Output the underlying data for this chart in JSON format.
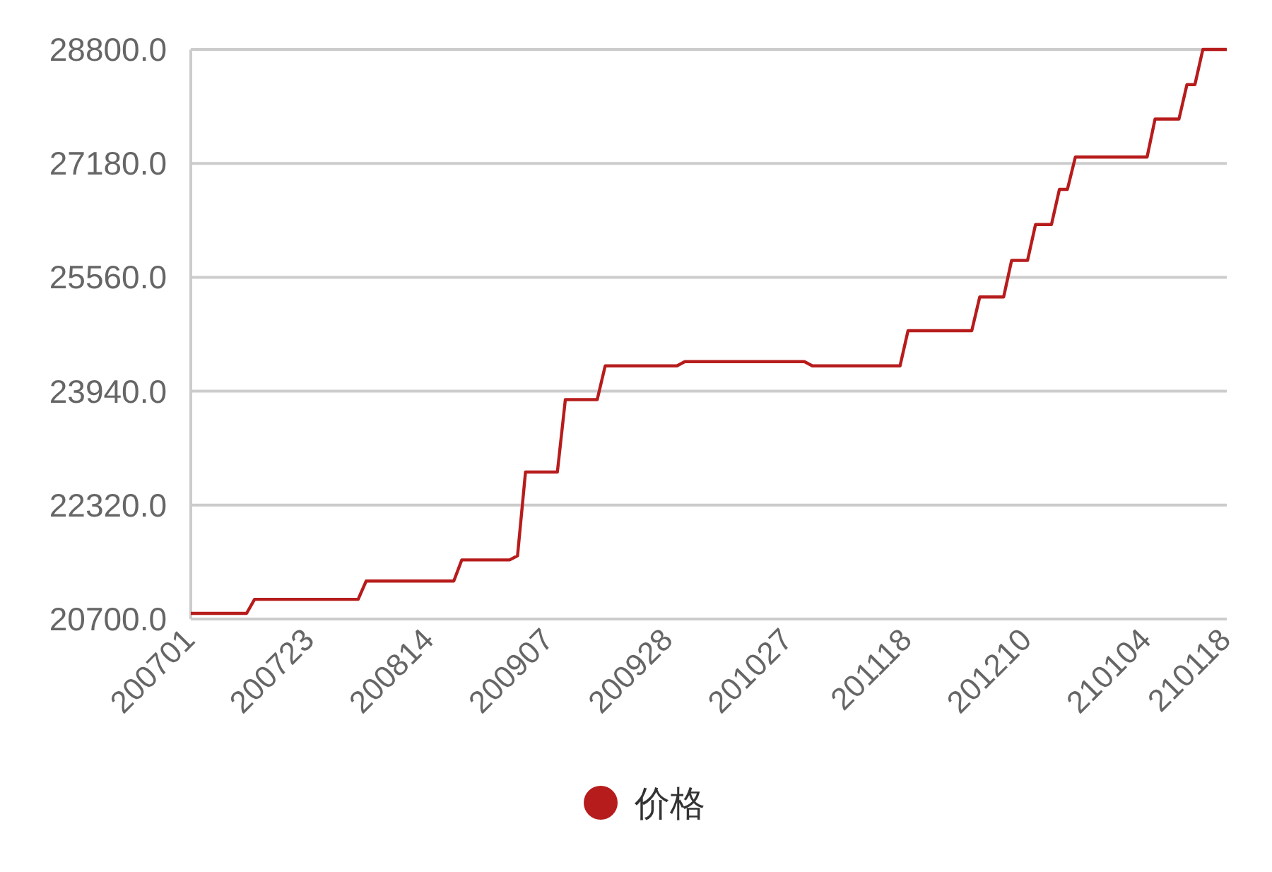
{
  "chart_data": {
    "type": "line",
    "categories": [
      "200701",
      null,
      null,
      null,
      null,
      null,
      null,
      null,
      null,
      null,
      null,
      null,
      null,
      null,
      null,
      "200723",
      null,
      null,
      null,
      null,
      null,
      null,
      null,
      null,
      null,
      null,
      null,
      null,
      null,
      null,
      "200814",
      null,
      null,
      null,
      null,
      null,
      null,
      null,
      null,
      null,
      null,
      null,
      null,
      null,
      null,
      "200907",
      null,
      null,
      null,
      null,
      null,
      null,
      null,
      null,
      null,
      null,
      null,
      null,
      null,
      null,
      "200928",
      null,
      null,
      null,
      null,
      null,
      null,
      null,
      null,
      null,
      null,
      null,
      null,
      null,
      null,
      "201027",
      null,
      null,
      null,
      null,
      null,
      null,
      null,
      null,
      null,
      null,
      null,
      null,
      null,
      null,
      "201118",
      null,
      null,
      null,
      null,
      null,
      null,
      null,
      null,
      null,
      null,
      null,
      null,
      null,
      null,
      "201210",
      null,
      null,
      null,
      null,
      null,
      null,
      null,
      null,
      null,
      null,
      null,
      null,
      null,
      null,
      "210104",
      null,
      null,
      null,
      null,
      null,
      null,
      null,
      null,
      null,
      "210118"
    ],
    "series": [
      {
        "name": "价格",
        "color": "#b71c1c",
        "values": [
          20780,
          20780,
          20780,
          20780,
          20780,
          20780,
          20780,
          20780,
          20980,
          20980,
          20980,
          20980,
          20980,
          20980,
          20980,
          20980,
          20980,
          20980,
          20980,
          20980,
          20980,
          20980,
          21240,
          21240,
          21240,
          21240,
          21240,
          21240,
          21240,
          21240,
          21240,
          21240,
          21240,
          21240,
          21540,
          21540,
          21540,
          21540,
          21540,
          21540,
          21540,
          21600,
          22790,
          22790,
          22790,
          22790,
          22790,
          23820,
          23820,
          23820,
          23820,
          23820,
          24300,
          24300,
          24300,
          24300,
          24300,
          24300,
          24300,
          24300,
          24300,
          24300,
          24360,
          24360,
          24360,
          24360,
          24360,
          24360,
          24360,
          24360,
          24360,
          24360,
          24360,
          24360,
          24360,
          24360,
          24360,
          24360,
          24300,
          24300,
          24300,
          24300,
          24300,
          24300,
          24300,
          24300,
          24300,
          24300,
          24300,
          24300,
          24800,
          24800,
          24800,
          24800,
          24800,
          24800,
          24800,
          24800,
          24800,
          25280,
          25280,
          25280,
          25280,
          25800,
          25800,
          25800,
          26310,
          26310,
          26310,
          26810,
          26810,
          27270,
          27270,
          27270,
          27270,
          27270,
          27270,
          27270,
          27270,
          27270,
          27270,
          27810,
          27810,
          27810,
          27810,
          28300,
          28300,
          28800,
          28800,
          28800,
          28800
        ]
      }
    ],
    "ylim": [
      20700,
      28800
    ],
    "yticks": [
      {
        "value": 20700,
        "label": "20700.0"
      },
      {
        "value": 22320,
        "label": "22320.0"
      },
      {
        "value": 23940,
        "label": "23940.0"
      },
      {
        "value": 25560,
        "label": "25560.0"
      },
      {
        "value": 27180,
        "label": "27180.0"
      },
      {
        "value": 28800,
        "label": "28800.0"
      }
    ],
    "grid": "y",
    "legend": "bottom"
  }
}
